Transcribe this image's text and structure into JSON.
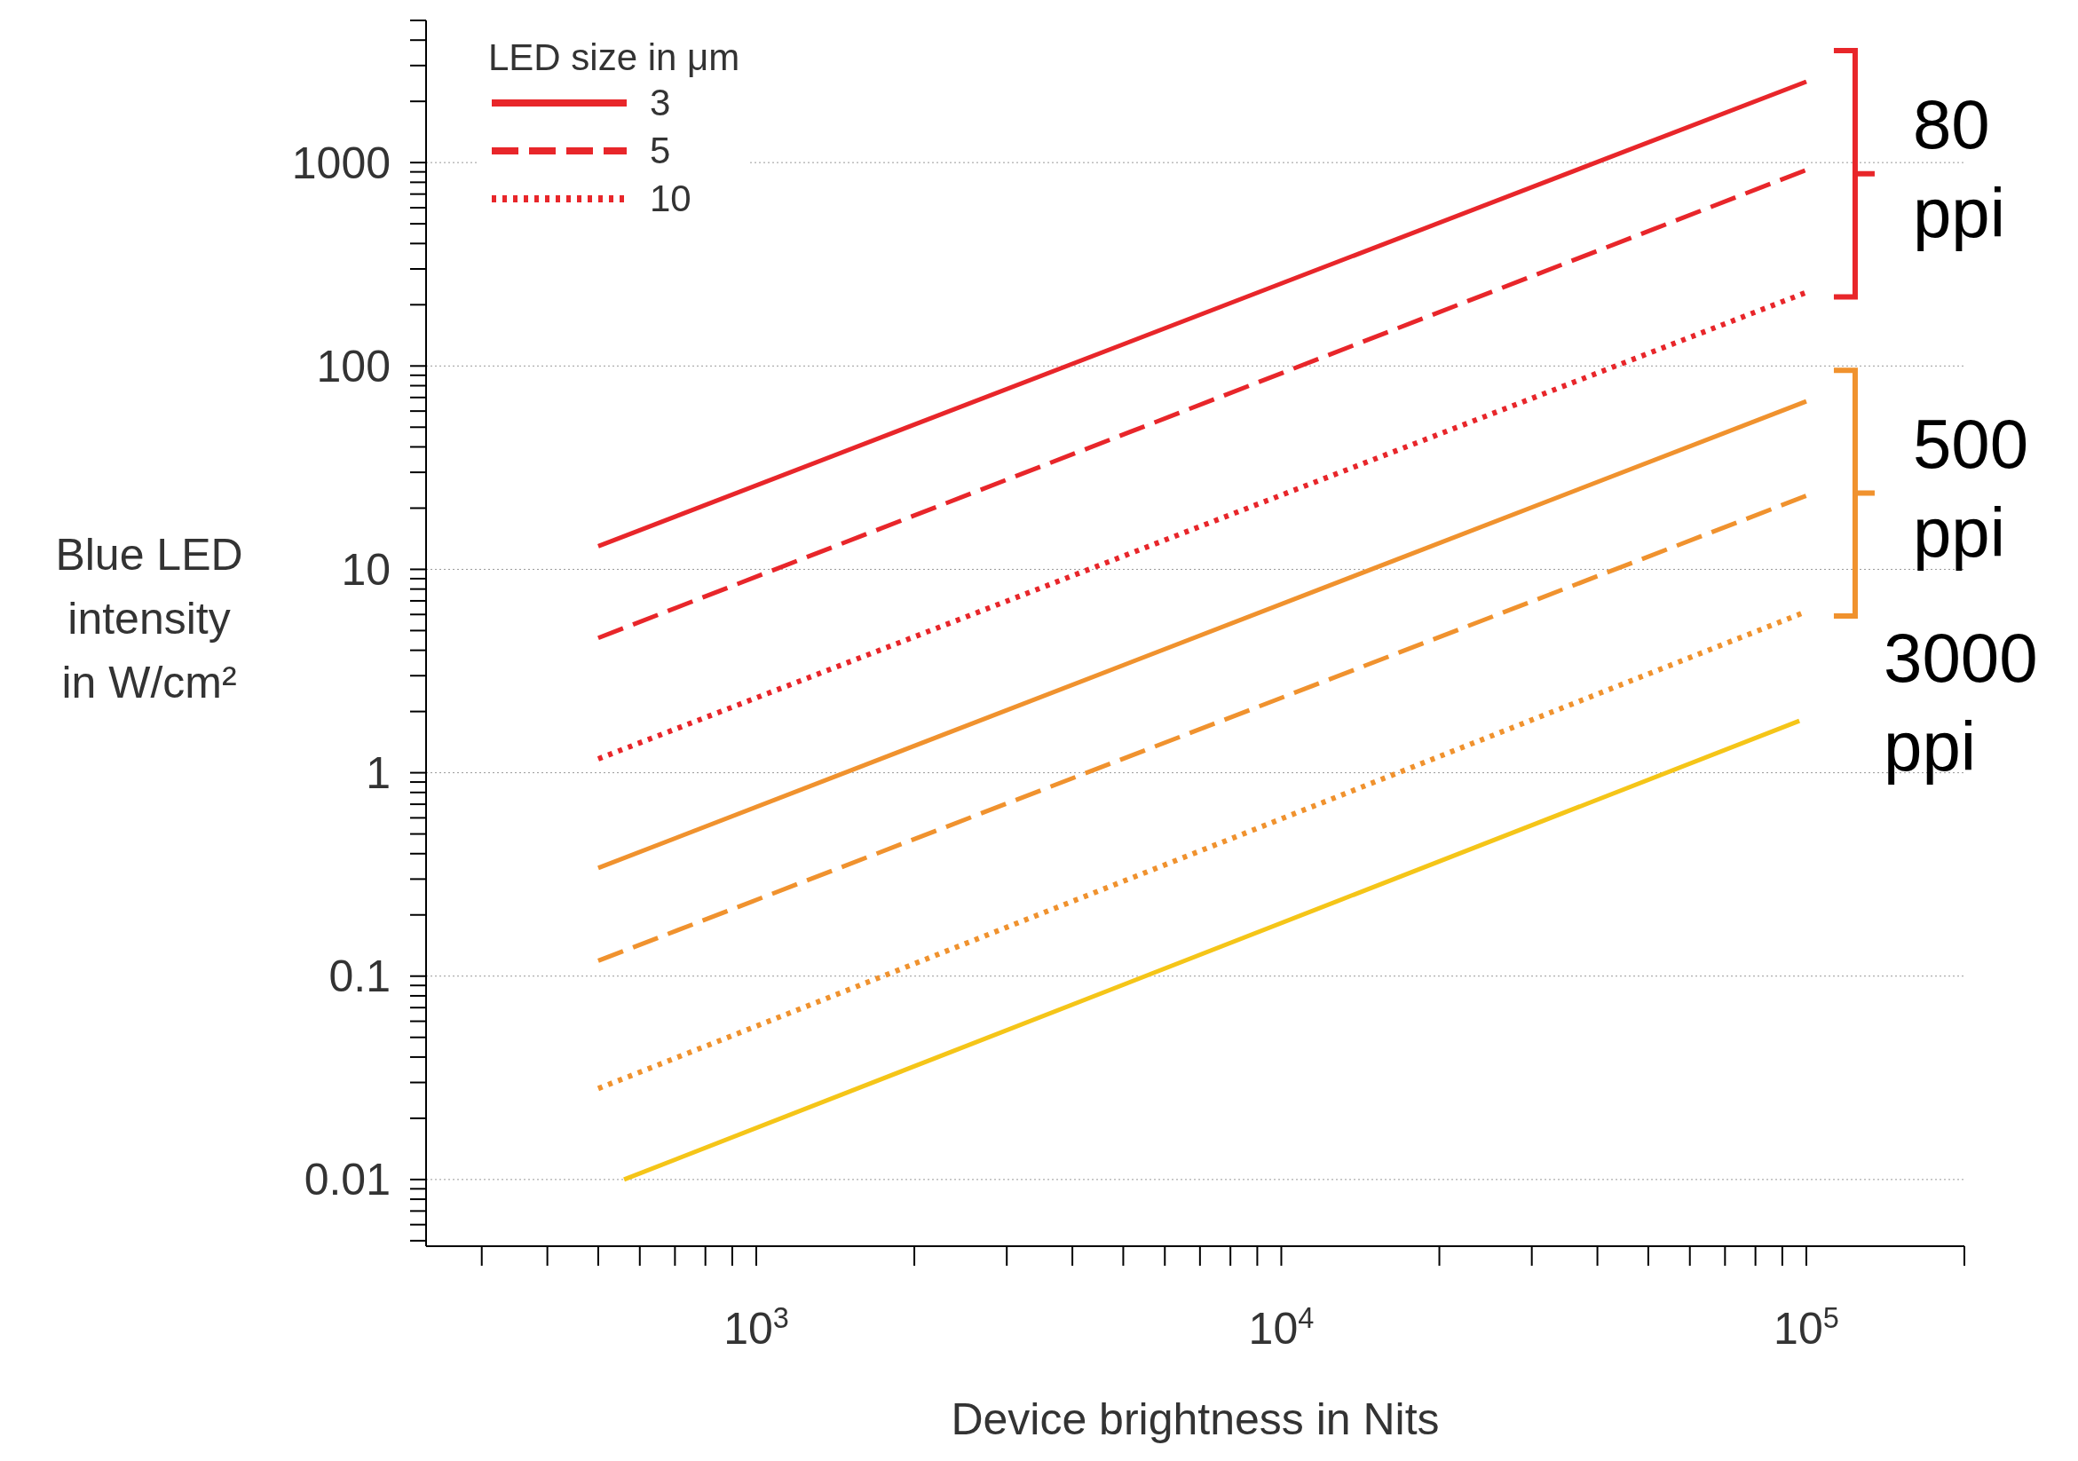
{
  "chart_data": {
    "type": "line",
    "xlabel": "Device brightness in Nits",
    "ylabel": "Blue LED intensity in W/cm²",
    "legend_title": "LED size in μm",
    "log": "xy",
    "grid": "y",
    "legend": "top left",
    "marker": "none",
    "xlim": [
      235,
      200000
    ],
    "ylim": [
      0.0047,
      5000
    ],
    "xticks": [
      {
        "value": 1000,
        "label": "10$^{3}$"
      },
      {
        "value": 10000,
        "label": "10$^{4}$"
      },
      {
        "value": 100000,
        "label": "10$^{5}$"
      }
    ],
    "yticks": [
      0.01,
      0.1,
      1,
      10,
      100,
      1000
    ],
    "series": [
      {
        "name": "3",
        "color": "#e8262a",
        "line_style": "solid",
        "x": [
          500,
          100000
        ],
        "values": [
          13,
          2500
        ]
      },
      {
        "name": "5",
        "color": "#e8262a",
        "line_style": "dashed",
        "x": [
          500,
          100000
        ],
        "values": [
          4.6,
          920
        ]
      },
      {
        "name": "10",
        "color": "#e8262a",
        "line_style": "dotted",
        "x": [
          500,
          100000
        ],
        "values": [
          1.17,
          230
        ]
      },
      {
        "color": "#f0922e",
        "line_style": "solid",
        "x": [
          500,
          100000
        ],
        "values": [
          0.34,
          67
        ]
      },
      {
        "color": "#f0922e",
        "line_style": "dashed",
        "x": [
          500,
          100000
        ],
        "values": [
          0.119,
          23
        ]
      },
      {
        "color": "#f0922e",
        "line_style": "dotted",
        "x": [
          500,
          100000
        ],
        "values": [
          0.028,
          6.2
        ]
      },
      {
        "color": "#f5c518",
        "line_style": "solid",
        "x": [
          560,
          97000
        ],
        "values": [
          0.01,
          1.8
        ]
      }
    ],
    "annotations": [
      "80 ppi",
      "500 ppi",
      "3000 ppi"
    ]
  }
}
